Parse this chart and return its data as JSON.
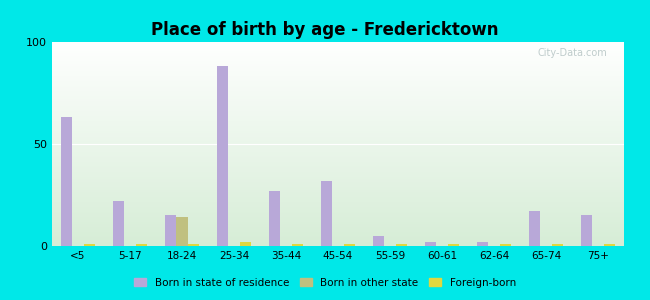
{
  "title": "Place of birth by age - Fredericktown",
  "categories": [
    "<5",
    "5-17",
    "18-24",
    "25-34",
    "35-44",
    "45-54",
    "55-59",
    "60-61",
    "62-64",
    "65-74",
    "75+"
  ],
  "born_in_state": [
    63,
    22,
    15,
    88,
    27,
    32,
    5,
    2,
    2,
    17,
    15
  ],
  "born_other_state": [
    0,
    0,
    14,
    0,
    0,
    0,
    0,
    0,
    0,
    0,
    0
  ],
  "foreign_born": [
    1,
    1,
    1,
    2,
    1,
    1,
    1,
    1,
    1,
    1,
    1
  ],
  "color_state": "#b8a8d8",
  "color_other": "#c0c080",
  "color_foreign": "#e0d840",
  "ylim": [
    0,
    100
  ],
  "yticks": [
    0,
    50,
    100
  ],
  "outer_bg": "#00e8e8",
  "title_fontsize": 12,
  "legend_labels": [
    "Born in state of residence",
    "Born in other state",
    "Foreign-born"
  ]
}
